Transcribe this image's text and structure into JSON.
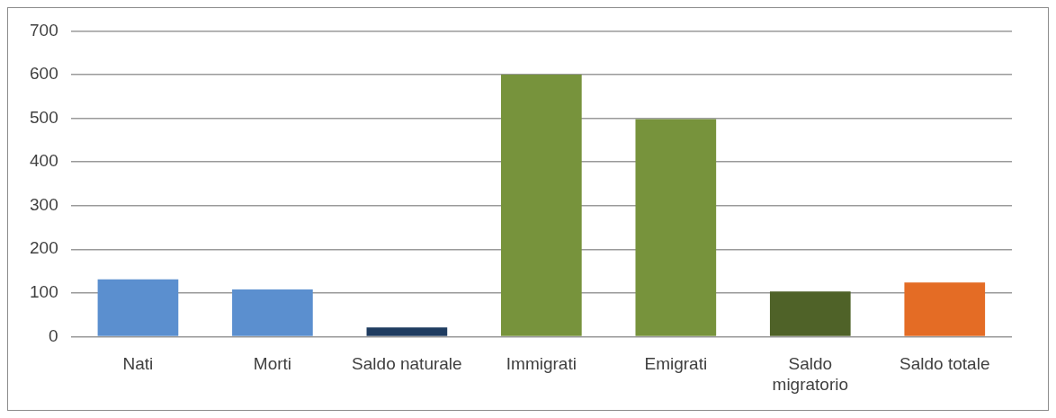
{
  "chart_data": {
    "type": "bar",
    "categories": [
      "Nati",
      "Morti",
      "Saldo naturale",
      "Immigrati",
      "Emigrati",
      "Saldo migratorio",
      "Saldo totale"
    ],
    "values": [
      131,
      108,
      21,
      600,
      498,
      103,
      124
    ],
    "colors": [
      "#5b8fcf",
      "#5b8fcf",
      "#1f3c60",
      "#77933c",
      "#77933c",
      "#4f6228",
      "#e46c25"
    ],
    "ylim": [
      0,
      700
    ],
    "yticks": [
      0,
      100,
      200,
      300,
      400,
      500,
      600,
      700
    ],
    "grid": "y",
    "legend": false
  }
}
